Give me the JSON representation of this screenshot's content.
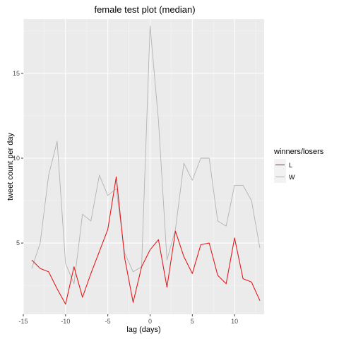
{
  "chart_data": {
    "type": "line",
    "title": "female test plot  (median)",
    "xlabel": "lag (days)",
    "ylabel": "tweet count per day",
    "xlim": [
      -15,
      13.5
    ],
    "ylim": [
      0.8,
      18.2
    ],
    "x_ticks": [
      -15,
      -10,
      -5,
      0,
      5,
      10
    ],
    "x_tick_labels": [
      "-15",
      "-10",
      "-5",
      "0",
      "5",
      "10"
    ],
    "y_ticks": [
      5,
      10,
      15
    ],
    "y_tick_labels": [
      "5",
      "10",
      "15"
    ],
    "grid": true,
    "legend": {
      "title": "winners/losers",
      "placement": "right"
    },
    "x": [
      -14,
      -13,
      -12,
      -11,
      -10,
      -9,
      -8,
      -7,
      -6,
      -5,
      -4,
      -3,
      -2,
      -1,
      0,
      1,
      2,
      3,
      4,
      5,
      6,
      7,
      8,
      9,
      10,
      11,
      12,
      13
    ],
    "series": [
      {
        "name": "L",
        "color": "#e41a1c",
        "values": [
          4.0,
          3.5,
          3.3,
          2.3,
          1.4,
          3.6,
          1.8,
          3.2,
          4.5,
          5.8,
          8.9,
          4.1,
          1.5,
          3.6,
          4.6,
          5.2,
          2.4,
          5.7,
          4.2,
          3.2,
          4.9,
          5.0,
          3.1,
          2.6,
          5.3,
          2.9,
          2.7,
          1.6
        ]
      },
      {
        "name": "W",
        "color": "#b3b3b3",
        "values": [
          3.5,
          5.0,
          9.0,
          11.0,
          3.8,
          2.6,
          6.7,
          6.3,
          9.0,
          7.8,
          8.2,
          4.4,
          3.3,
          3.6,
          17.8,
          12.2,
          4.0,
          5.8,
          9.7,
          8.7,
          10.0,
          10.0,
          6.3,
          6.0,
          8.4,
          8.4,
          7.5,
          4.7
        ]
      }
    ]
  }
}
